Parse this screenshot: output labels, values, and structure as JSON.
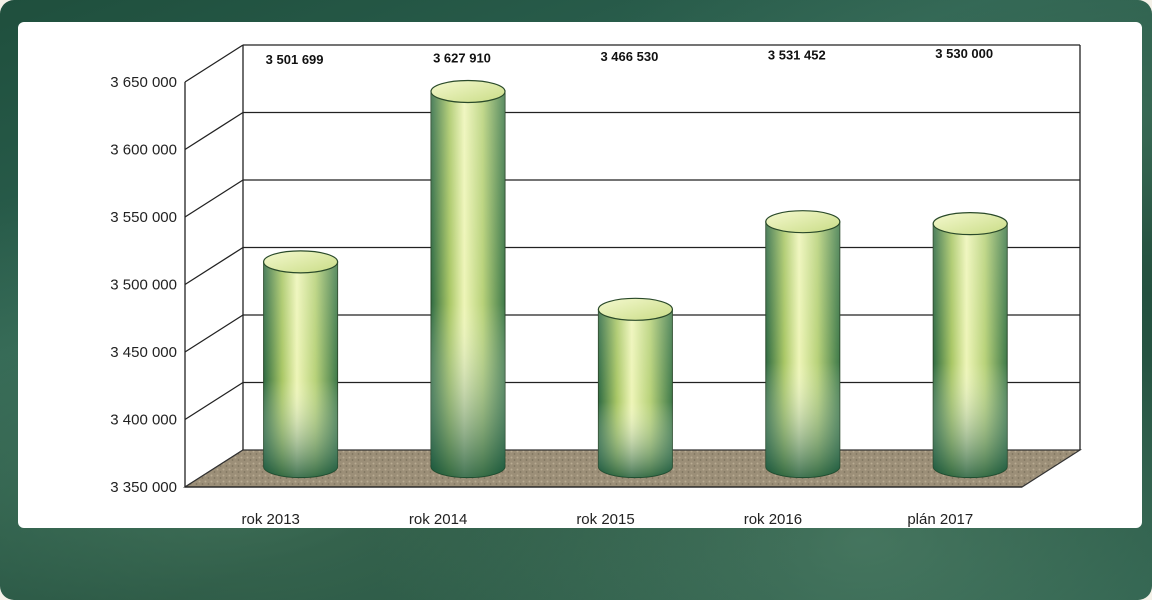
{
  "chart_data": {
    "type": "bar",
    "categories": [
      "rok 2013",
      "rok 2014",
      "rok 2015",
      "rok 2016",
      "plán 2017"
    ],
    "values": [
      3501699,
      3627910,
      3466530,
      3531452,
      3530000
    ],
    "value_labels": [
      "3 501 699",
      "3 627 910",
      "3 466 530",
      "3 531 452",
      "3 530 000"
    ],
    "y_ticks": [
      3350000,
      3400000,
      3450000,
      3500000,
      3550000,
      3600000,
      3650000
    ],
    "y_tick_labels": [
      "3 350 000",
      "3 400 000",
      "3 450 000",
      "3 500 000",
      "3 550 000",
      "3 600 000",
      "3 650 000"
    ],
    "ylim": [
      3350000,
      3650000
    ],
    "grid": true,
    "style": "3d-cylinder",
    "colors": {
      "bar_top": "#e9f2b0",
      "bar_mid": "#c8dc7a",
      "bar_bottom": "#1f7a55",
      "floor": "#a89a82"
    }
  }
}
